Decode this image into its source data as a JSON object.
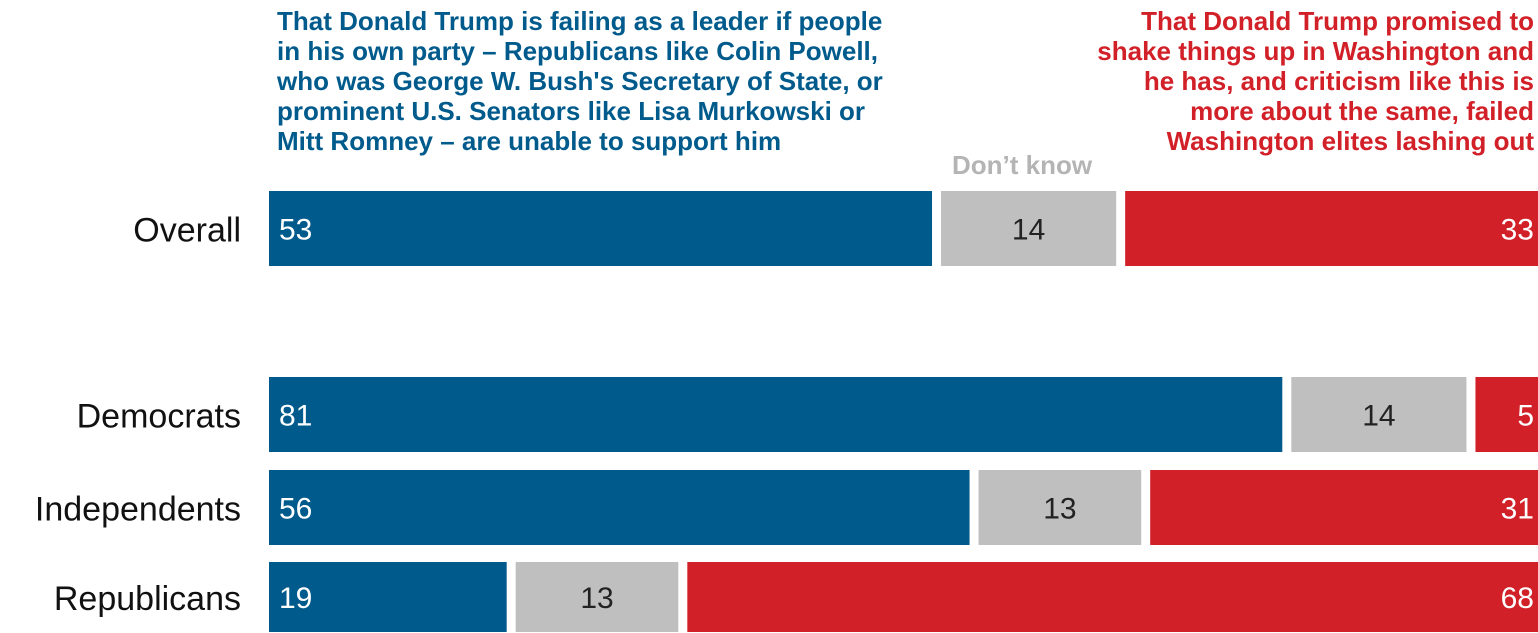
{
  "legend": {
    "support_lines": [
      "That Donald Trump is failing as a leader if people",
      "in his own party – Republicans like Colin Powell,",
      "who was George W. Bush's Secretary of State, or",
      "prominent U.S. Senators like Lisa Murkowski or",
      "Mitt Romney – are unable to support him"
    ],
    "dont_know": "Don’t know",
    "oppose_lines": [
      "That Donald Trump promised to",
      "shake things up in Washington and",
      "he has, and criticism like this is",
      "more about the same, failed",
      "Washington elites lashing out"
    ]
  },
  "colors": {
    "first": "#005b8c",
    "middle": "#bfbfbf",
    "last": "#d22028"
  },
  "chart_data": {
    "type": "bar",
    "orientation": "horizontal",
    "stacked": true,
    "categories": [
      "Overall",
      "Democrats",
      "Independents",
      "Republicans"
    ],
    "series": [
      {
        "values": [
          53,
          81,
          56,
          19
        ]
      },
      {
        "name": "Don’t know",
        "values": [
          14,
          14,
          13,
          13
        ]
      },
      {
        "values": [
          33,
          5,
          31,
          68
        ]
      }
    ]
  }
}
